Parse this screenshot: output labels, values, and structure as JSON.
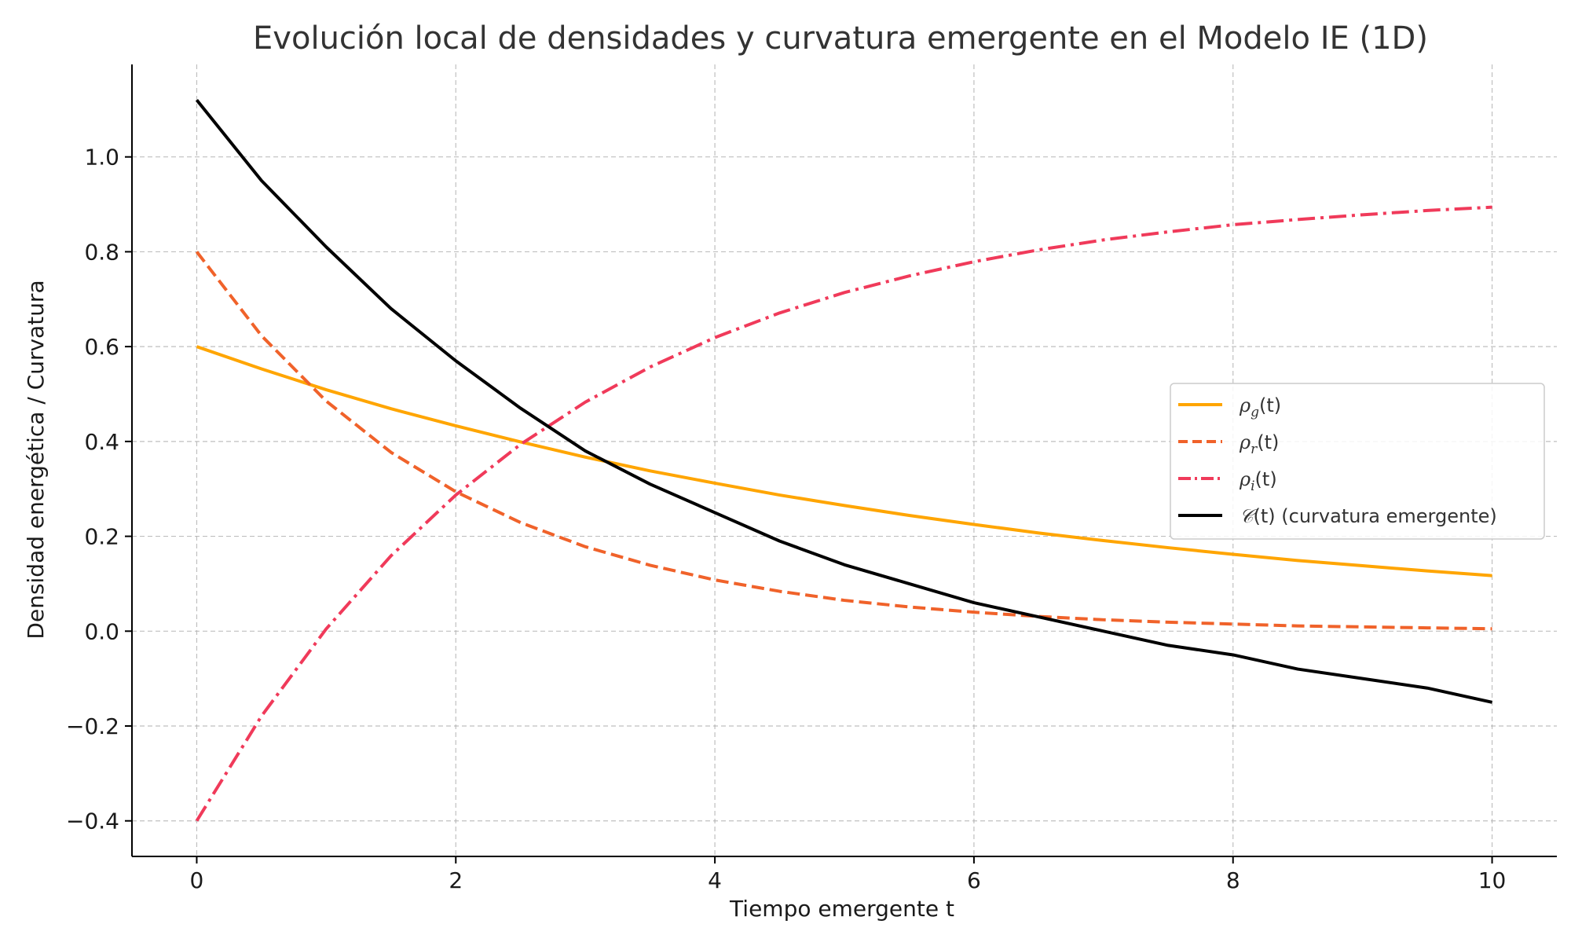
{
  "chart_data": {
    "type": "line",
    "title": "Evolución local de densidades y curvatura emergente en el Modelo IE (1D)",
    "xlabel": "Tiempo emergente t",
    "ylabel": "Densidad energética / Curvatura",
    "xlim": [
      -0.5,
      10.5
    ],
    "ylim": [
      -0.475,
      1.195
    ],
    "x_ticks": [
      0,
      2,
      4,
      6,
      8,
      10
    ],
    "x_tick_labels": [
      "0",
      "2",
      "4",
      "6",
      "8",
      "10"
    ],
    "y_ticks": [
      -0.4,
      -0.2,
      0.0,
      0.2,
      0.4,
      0.6,
      0.8,
      1.0
    ],
    "y_tick_labels": [
      "−0.4",
      "−0.2",
      "0.0",
      "0.2",
      "0.4",
      "0.6",
      "0.8",
      "1.0"
    ],
    "grid": true,
    "legend_position": "center-right",
    "x": [
      0,
      0.5,
      1,
      1.5,
      2,
      2.5,
      3,
      3.5,
      4,
      4.5,
      5,
      5.5,
      6,
      6.5,
      7,
      7.5,
      8,
      8.5,
      9,
      9.5,
      10
    ],
    "series": [
      {
        "name_base": "ρ",
        "name_sub": "g",
        "name_tail": "(t)",
        "color": "#FFA500",
        "dash": "solid",
        "values": [
          0.6,
          0.553,
          0.509,
          0.469,
          0.433,
          0.399,
          0.367,
          0.338,
          0.312,
          0.287,
          0.265,
          0.244,
          0.225,
          0.207,
          0.191,
          0.176,
          0.162,
          0.149,
          0.138,
          0.127,
          0.117
        ]
      },
      {
        "name_base": "ρ",
        "name_sub": "r",
        "name_tail": "(t)",
        "color": "#F0622A",
        "dash": "dashed",
        "values": [
          0.8,
          0.623,
          0.485,
          0.377,
          0.294,
          0.229,
          0.178,
          0.139,
          0.108,
          0.084,
          0.065,
          0.051,
          0.04,
          0.031,
          0.024,
          0.019,
          0.015,
          0.011,
          0.009,
          0.007,
          0.005
        ]
      },
      {
        "name_base": "ρ",
        "name_sub": "i",
        "name_tail": "(t)",
        "color": "#F03A5A",
        "dash": "dashdot",
        "values": [
          -0.4,
          -0.179,
          0.005,
          0.159,
          0.287,
          0.394,
          0.483,
          0.557,
          0.619,
          0.671,
          0.714,
          0.749,
          0.779,
          0.804,
          0.825,
          0.842,
          0.857,
          0.868,
          0.878,
          0.887,
          0.894
        ]
      },
      {
        "name_base": "𝒞",
        "name_sub": "",
        "name_tail": "(t) (curvatura emergente)",
        "color": "#000000",
        "dash": "solid",
        "values": [
          1.12,
          0.95,
          0.81,
          0.68,
          0.57,
          0.47,
          0.38,
          0.31,
          0.25,
          0.19,
          0.14,
          0.1,
          0.06,
          0.03,
          0.0,
          -0.03,
          -0.05,
          -0.08,
          -0.1,
          -0.12,
          -0.15
        ]
      }
    ]
  }
}
